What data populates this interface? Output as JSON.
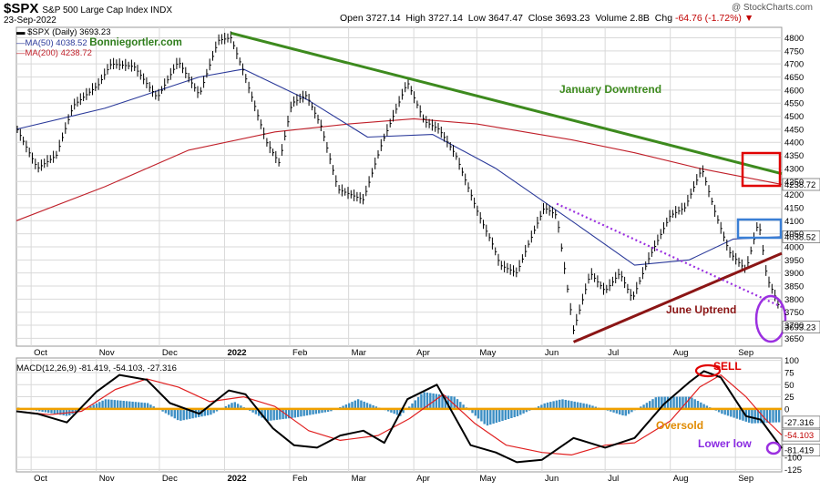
{
  "header": {
    "symbol": "$SPX",
    "name": "S&P 500 Large Cap Index INDX",
    "date": "23-Sep-2022",
    "open_label": "Open",
    "open": "3727.14",
    "high_label": "High",
    "high": "3727.14",
    "low_label": "Low",
    "low": "3647.47",
    "close_label": "Close",
    "close": "3693.23",
    "volume_label": "Volume",
    "volume": "2.8B",
    "chg_label": "Chg",
    "chg": "-64.76 (-1.72%)",
    "watermark": "@ StockCharts.com"
  },
  "legend": {
    "price": "$SPX (Daily) 3693.23",
    "ma50": "MA(50) 4038.52",
    "ma200": "MA(200) 4238.72",
    "brand": "Bonniegortler.com"
  },
  "colors": {
    "price": "#000000",
    "ma50": "#2b3a9a",
    "ma200": "#c0202a",
    "downtrend": "#3d8a1e",
    "uptrend": "#8b1515",
    "dotted": "#9b30e0",
    "macd_line": "#000000",
    "signal_line": "#e02020",
    "histogram": "#3d8fc4",
    "zero_line": "#f0a000",
    "grid": "#d9d9d9",
    "red_box": "#e00000",
    "blue_box": "#3a7fd5",
    "circle": "#9b30e0"
  },
  "chart_data": [
    {
      "type": "line",
      "title": "$SPX S&P 500 Large Cap Index INDX",
      "x_labels": [
        "Oct",
        "Nov",
        "Dec",
        "2022",
        "Feb",
        "Mar",
        "Apr",
        "May",
        "Jun",
        "Jul",
        "Aug",
        "Sep"
      ],
      "x_range": [
        "2021-09-24",
        "2022-09-23"
      ],
      "ylim": [
        3620,
        4840
      ],
      "y_ticks": [
        3650,
        3700,
        3750,
        3800,
        3850,
        3900,
        3950,
        4000,
        4050,
        4100,
        4150,
        4200,
        4250,
        4300,
        4350,
        4400,
        4450,
        4500,
        4550,
        4600,
        4650,
        4700,
        4750,
        4800
      ],
      "grid": true,
      "series": [
        {
          "name": "$SPX (Daily)",
          "x": [
            "2021-09-24",
            "2021-10-04",
            "2021-10-13",
            "2021-10-21",
            "2021-11-02",
            "2021-11-08",
            "2021-11-19",
            "2021-11-30",
            "2021-12-10",
            "2021-12-20",
            "2021-12-29",
            "2022-01-04",
            "2022-01-10",
            "2022-01-21",
            "2022-01-27",
            "2022-02-02",
            "2022-02-09",
            "2022-02-16",
            "2022-02-24",
            "2022-03-08",
            "2022-03-17",
            "2022-03-29",
            "2022-04-06",
            "2022-04-13",
            "2022-04-21",
            "2022-05-02",
            "2022-05-09",
            "2022-05-12",
            "2022-05-20",
            "2022-05-25",
            "2022-06-02",
            "2022-06-08",
            "2022-06-16",
            "2022-06-24",
            "2022-07-01",
            "2022-07-08",
            "2022-07-14",
            "2022-07-22",
            "2022-08-01",
            "2022-08-08",
            "2022-08-16",
            "2022-08-22",
            "2022-08-29",
            "2022-09-06",
            "2022-09-12",
            "2022-09-16",
            "2022-09-21",
            "2022-09-23"
          ],
          "values": [
            4455,
            4300,
            4350,
            4540,
            4620,
            4700,
            4690,
            4570,
            4710,
            4580,
            4790,
            4800,
            4670,
            4400,
            4320,
            4550,
            4580,
            4460,
            4220,
            4180,
            4400,
            4630,
            4480,
            4450,
            4350,
            4120,
            4000,
            3930,
            3900,
            4000,
            4150,
            4120,
            3680,
            3900,
            3830,
            3900,
            3800,
            3960,
            4120,
            4150,
            4300,
            4140,
            3980,
            3910,
            4100,
            3880,
            3790,
            3693
          ]
        },
        {
          "name": "MA(50)",
          "x": [
            "2021-09-24",
            "2021-11-05",
            "2021-12-20",
            "2022-01-10",
            "2022-02-10",
            "2022-03-10",
            "2022-04-10",
            "2022-05-10",
            "2022-06-15",
            "2022-07-15",
            "2022-08-10",
            "2022-08-31",
            "2022-09-23"
          ],
          "values": [
            4450,
            4530,
            4650,
            4680,
            4560,
            4420,
            4430,
            4300,
            4100,
            3930,
            3950,
            4030,
            4039
          ]
        },
        {
          "name": "MA(200)",
          "x": [
            "2021-09-24",
            "2021-11-05",
            "2021-12-15",
            "2022-01-25",
            "2022-03-01",
            "2022-04-01",
            "2022-05-01",
            "2022-06-15",
            "2022-07-15",
            "2022-08-15",
            "2022-09-23"
          ],
          "values": [
            4100,
            4230,
            4370,
            4440,
            4470,
            4490,
            4470,
            4410,
            4360,
            4300,
            4239
          ]
        }
      ],
      "annotations": {
        "downtrend_label": "January Downtrend",
        "uptrend_label": "June Uptrend",
        "last_price_tag": "3693.23",
        "ma200_tag": "4238.72",
        "ma50_tag": "4038.52",
        "downtrend_line": {
          "from": [
            "2022-01-04",
            4818
          ],
          "to": [
            "2022-09-23",
            4280
          ]
        },
        "uptrend_line": {
          "from": [
            "2022-06-16",
            3636
          ],
          "to": [
            "2022-09-23",
            3975
          ]
        },
        "dotted_line": {
          "from": [
            "2022-06-08",
            4165
          ],
          "to": [
            "2022-09-23",
            3770
          ]
        }
      }
    },
    {
      "type": "line",
      "title": "MACD(12,26,9) -81.419, -54.103, -27.316",
      "x_labels": [
        "Oct",
        "Nov",
        "Dec",
        "2022",
        "Feb",
        "Mar",
        "Apr",
        "May",
        "Jun",
        "Jul",
        "Aug",
        "Sep"
      ],
      "ylim": [
        -130,
        105
      ],
      "y_ticks": [
        100,
        75,
        50,
        25,
        0,
        -100,
        -125
      ],
      "grid": true,
      "series": [
        {
          "name": "MACD",
          "x": [
            "2021-09-24",
            "2021-10-04",
            "2021-10-18",
            "2021-11-01",
            "2021-11-12",
            "2021-11-25",
            "2021-12-06",
            "2021-12-20",
            "2022-01-03",
            "2022-01-11",
            "2022-01-24",
            "2022-02-03",
            "2022-02-14",
            "2022-02-25",
            "2022-03-08",
            "2022-03-18",
            "2022-03-29",
            "2022-04-12",
            "2022-04-28",
            "2022-05-10",
            "2022-05-20",
            "2022-06-01",
            "2022-06-16",
            "2022-07-01",
            "2022-07-15",
            "2022-07-29",
            "2022-08-10",
            "2022-08-17",
            "2022-08-25",
            "2022-09-06",
            "2022-09-13",
            "2022-09-23"
          ],
          "values": [
            -5,
            -10,
            -28,
            35,
            70,
            60,
            12,
            -10,
            38,
            30,
            -40,
            -75,
            -80,
            -55,
            -45,
            -70,
            20,
            50,
            -75,
            -90,
            -110,
            -105,
            -60,
            -80,
            -60,
            10,
            55,
            78,
            65,
            -15,
            -22,
            -81.4
          ]
        },
        {
          "name": "Signal",
          "x": [
            "2021-09-24",
            "2021-10-10",
            "2021-10-25",
            "2021-11-10",
            "2021-11-25",
            "2021-12-10",
            "2021-12-25",
            "2022-01-10",
            "2022-01-25",
            "2022-02-10",
            "2022-02-25",
            "2022-03-15",
            "2022-03-30",
            "2022-04-15",
            "2022-04-30",
            "2022-05-15",
            "2022-06-01",
            "2022-06-15",
            "2022-07-01",
            "2022-07-15",
            "2022-08-01",
            "2022-08-15",
            "2022-08-25",
            "2022-09-06",
            "2022-09-15",
            "2022-09-23"
          ],
          "values": [
            -5,
            -12,
            -5,
            40,
            62,
            45,
            15,
            25,
            5,
            -45,
            -65,
            -55,
            -20,
            30,
            -30,
            -75,
            -90,
            -95,
            -75,
            -70,
            -25,
            45,
            70,
            25,
            -20,
            -54.1
          ]
        },
        {
          "name": "Histogram",
          "x": [
            "2021-09-24",
            "2021-10-18",
            "2021-11-05",
            "2021-11-25",
            "2021-12-10",
            "2021-12-25",
            "2022-01-05",
            "2022-01-21",
            "2022-02-03",
            "2022-02-20",
            "2022-03-05",
            "2022-03-25",
            "2022-04-05",
            "2022-04-20",
            "2022-05-05",
            "2022-05-20",
            "2022-06-02",
            "2022-06-10",
            "2022-06-22",
            "2022-07-10",
            "2022-07-25",
            "2022-08-10",
            "2022-08-25",
            "2022-09-08",
            "2022-09-23"
          ],
          "values": [
            3,
            -15,
            20,
            12,
            -25,
            -12,
            15,
            -25,
            -18,
            -5,
            20,
            -15,
            35,
            25,
            -35,
            -15,
            12,
            20,
            10,
            -15,
            25,
            25,
            -10,
            -30,
            -27.3
          ]
        }
      ],
      "annotations": {
        "sell_label": "SELL",
        "oversold_label": "Oversold",
        "lower_low_label": "Lower low",
        "tags": [
          "-27.316",
          "-54.103",
          "-81.419"
        ]
      }
    }
  ]
}
